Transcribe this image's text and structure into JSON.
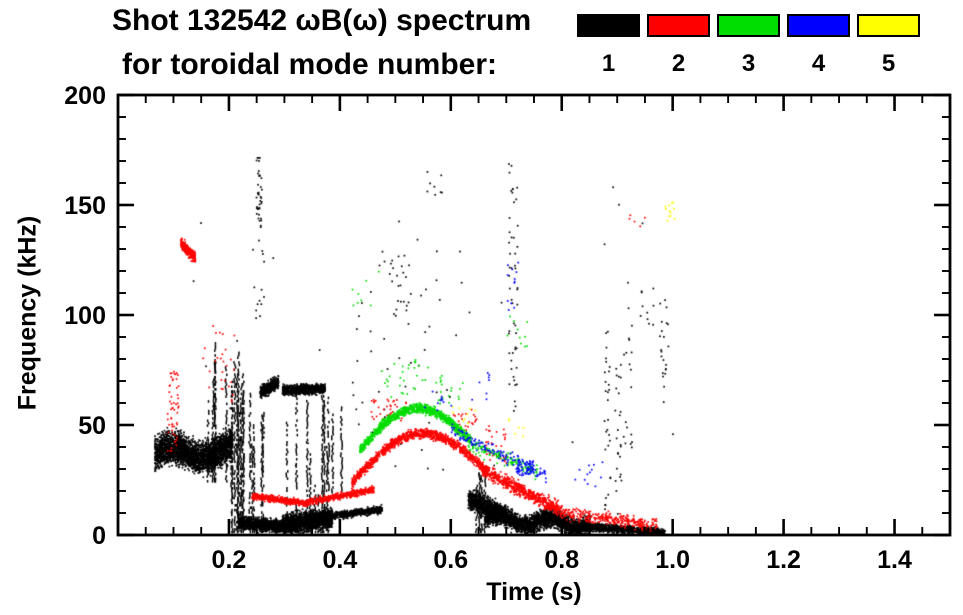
{
  "header": {
    "title_line1": "Shot 132542 ωB(ω) spectrum",
    "title_line2": "for toroidal mode number:"
  },
  "chart_data": {
    "type": "scatter",
    "title": "Shot 132542 ωB(ω) spectrum for toroidal mode number:",
    "xlabel": "Time (s)",
    "ylabel": "Frequency (kHz)",
    "xlim": [
      0.0,
      1.5
    ],
    "ylim": [
      0,
      200
    ],
    "xticks": [
      0.2,
      0.4,
      0.6,
      0.8,
      1.0,
      1.2,
      1.4
    ],
    "xtick_labels": [
      "0.2",
      "0.4",
      "0.6",
      "0.8",
      "1.0",
      "1.2",
      "1.4"
    ],
    "yticks": [
      0,
      50,
      100,
      150,
      200
    ],
    "ytick_labels": [
      "0",
      "50",
      "100",
      "150",
      "200"
    ],
    "x_minor_step": 0.05,
    "y_minor_step": 10,
    "grid": false,
    "legend_position": "top-right",
    "cluster_note": "Scatter content encoded as point clusters: ty=band (linear f trend t0->t1), arc (linear trend + sine bump of height amp), spk (uniform speckle box), vln (vertical striation lines from base up to random top). t in seconds, f in kHz, sp = gaussian f spread, n = point count.",
    "series": [
      {
        "name": "1",
        "color": "#000000",
        "clusters": [
          {
            "ty": "band",
            "t": [
              0.065,
              0.205
            ],
            "f": [
              37,
              39
            ],
            "sp": 7,
            "n": 2600,
            "wa": 3,
            "wf": 1.2
          },
          {
            "ty": "vln",
            "t": [
              0.15,
              0.196
            ],
            "lines": 5,
            "top": [
              60,
              92
            ],
            "base": 25
          },
          {
            "ty": "vln",
            "t": [
              0.196,
              0.222
            ],
            "lines": 8,
            "top": [
              55,
              95
            ],
            "base": 2
          },
          {
            "ty": "vln",
            "t": [
              0.222,
              0.262
            ],
            "lines": 7,
            "top": [
              30,
              75
            ],
            "base": 2
          },
          {
            "ty": "spk",
            "t": [
              0.248,
              0.258
            ],
            "f": [
              138,
              172
            ],
            "n": 38
          },
          {
            "ty": "spk",
            "t": [
              0.24,
              0.262
            ],
            "f": [
              95,
              138
            ],
            "n": 14
          },
          {
            "ty": "band",
            "t": [
              0.215,
              0.3
            ],
            "f": [
              6,
              4
            ],
            "sp": 2.8,
            "n": 1100
          },
          {
            "ty": "band",
            "t": [
              0.295,
              0.385
            ],
            "f": [
              5,
              8
            ],
            "sp": 4.2,
            "n": 1700
          },
          {
            "ty": "vln",
            "t": [
              0.3,
              0.378
            ],
            "lines": 9,
            "top": [
              18,
              66
            ],
            "base": 2
          },
          {
            "ty": "vln",
            "t": [
              0.378,
              0.402
            ],
            "lines": 3,
            "top": [
              40,
              68
            ],
            "base": 20
          },
          {
            "ty": "band",
            "t": [
              0.255,
              0.288
            ],
            "f": [
              65,
              70
            ],
            "sp": 2.8,
            "n": 380
          },
          {
            "ty": "band",
            "t": [
              0.295,
              0.372
            ],
            "f": [
              66,
              67
            ],
            "sp": 2.2,
            "n": 750
          },
          {
            "ty": "band",
            "t": [
              0.385,
              0.475
            ],
            "f": [
              9,
              12
            ],
            "sp": 1.6,
            "n": 520
          },
          {
            "ty": "band",
            "t": [
              0.63,
              0.7
            ],
            "f": [
              17,
              9
            ],
            "sp": 4.5,
            "n": 800
          },
          {
            "ty": "vln",
            "t": [
              0.645,
              0.678
            ],
            "lines": 5,
            "top": [
              22,
              36
            ],
            "base": 2
          },
          {
            "ty": "band",
            "t": [
              0.66,
              0.85
            ],
            "f": [
              8,
              5
            ],
            "sp": 4,
            "n": 2600,
            "wa": 2,
            "wf": 2
          },
          {
            "ty": "band",
            "t": [
              0.85,
              0.985
            ],
            "f": [
              4,
              1.5
            ],
            "sp": 1.8,
            "n": 900
          },
          {
            "ty": "spk",
            "t": [
              0.42,
              0.62
            ],
            "f": [
              15,
              130
            ],
            "n": 45
          },
          {
            "ty": "spk",
            "t": [
              0.49,
              0.525
            ],
            "f": [
              100,
              128
            ],
            "n": 18
          },
          {
            "ty": "spk",
            "t": [
              0.555,
              0.585
            ],
            "f": [
              148,
              168
            ],
            "n": 8
          },
          {
            "ty": "spk",
            "t": [
              0.703,
              0.72
            ],
            "f": [
              55,
              170
            ],
            "n": 50
          },
          {
            "ty": "spk",
            "t": [
              0.875,
              0.887
            ],
            "f": [
              5,
              95
            ],
            "n": 30
          },
          {
            "ty": "spk",
            "t": [
              0.895,
              0.907
            ],
            "f": [
              5,
              78
            ],
            "n": 24
          },
          {
            "ty": "spk",
            "t": [
              0.91,
              0.928
            ],
            "f": [
              40,
              105
            ],
            "n": 18
          },
          {
            "ty": "spk",
            "t": [
              0.935,
              0.965
            ],
            "f": [
              95,
              115
            ],
            "n": 10
          },
          {
            "ty": "spk",
            "t": [
              0.975,
              0.992
            ],
            "f": [
              60,
              108
            ],
            "n": 22
          },
          {
            "ty": "spk",
            "t": [
              0.1,
              1.0
            ],
            "f": [
              20,
              160
            ],
            "n": 35
          }
        ]
      },
      {
        "name": "2",
        "color": "#ff0000",
        "clusters": [
          {
            "ty": "band",
            "t": [
              0.112,
              0.138
            ],
            "f": [
              133,
              126
            ],
            "sp": 2.6,
            "n": 260
          },
          {
            "ty": "spk",
            "t": [
              0.088,
              0.108
            ],
            "f": [
              38,
              75
            ],
            "n": 55
          },
          {
            "ty": "spk",
            "t": [
              0.15,
              0.21
            ],
            "f": [
              58,
              96
            ],
            "n": 28
          },
          {
            "ty": "band",
            "t": [
              0.24,
              0.335
            ],
            "f": [
              18,
              15
            ],
            "sp": 1.4,
            "n": 430
          },
          {
            "ty": "band",
            "t": [
              0.335,
              0.46
            ],
            "f": [
              15,
              21
            ],
            "sp": 1.4,
            "n": 520
          },
          {
            "ty": "arc",
            "t": [
              0.42,
              0.665
            ],
            "f": [
              24,
              29
            ],
            "amp": 20,
            "sp": 2.2,
            "n": 1150
          },
          {
            "ty": "band",
            "t": [
              0.655,
              0.8
            ],
            "f": [
              30,
              11
            ],
            "sp": 3,
            "n": 620
          },
          {
            "ty": "band",
            "t": [
              0.8,
              0.97
            ],
            "f": [
              10,
              5
            ],
            "sp": 2.6,
            "n": 300
          },
          {
            "ty": "spk",
            "t": [
              0.455,
              0.52
            ],
            "f": [
              52,
              62
            ],
            "n": 40
          },
          {
            "ty": "spk",
            "t": [
              0.6,
              0.645
            ],
            "f": [
              46,
              58
            ],
            "n": 26
          },
          {
            "ty": "spk",
            "t": [
              0.66,
              0.7
            ],
            "f": [
              33,
              50
            ],
            "n": 30
          },
          {
            "ty": "spk",
            "t": [
              0.92,
              0.96
            ],
            "f": [
              140,
              155
            ],
            "n": 5
          }
        ]
      },
      {
        "name": "3",
        "color": "#00dd00",
        "clusters": [
          {
            "ty": "arc",
            "t": [
              0.435,
              0.635
            ],
            "f": [
              39,
              43
            ],
            "amp": 17,
            "sp": 2.2,
            "n": 950
          },
          {
            "ty": "spk",
            "t": [
              0.465,
              0.56
            ],
            "f": [
              63,
              80
            ],
            "n": 30
          },
          {
            "ty": "band",
            "t": [
              0.63,
              0.755
            ],
            "f": [
              42,
              29
            ],
            "sp": 3,
            "n": 150
          },
          {
            "ty": "spk",
            "t": [
              0.7,
              0.745
            ],
            "f": [
              85,
              100
            ],
            "n": 10
          },
          {
            "ty": "spk",
            "t": [
              0.57,
              0.625
            ],
            "f": [
              60,
              74
            ],
            "n": 20
          },
          {
            "ty": "spk",
            "t": [
              0.42,
              0.47
            ],
            "f": [
              100,
              122
            ],
            "n": 8
          }
        ]
      },
      {
        "name": "4",
        "color": "#0000ff",
        "clusters": [
          {
            "ty": "band",
            "t": [
              0.6,
              0.77
            ],
            "f": [
              48,
              27
            ],
            "sp": 3,
            "n": 130
          },
          {
            "ty": "spk",
            "t": [
              0.715,
              0.748
            ],
            "f": [
              27,
              34
            ],
            "n": 55
          },
          {
            "ty": "spk",
            "t": [
              0.7,
              0.722
            ],
            "f": [
              100,
              126
            ],
            "n": 12
          },
          {
            "ty": "spk",
            "t": [
              0.55,
              0.6
            ],
            "f": [
              55,
              66
            ],
            "n": 10
          },
          {
            "ty": "spk",
            "t": [
              0.82,
              0.875
            ],
            "f": [
              22,
              35
            ],
            "n": 12
          },
          {
            "ty": "spk",
            "t": [
              0.63,
              0.67
            ],
            "f": [
              60,
              76
            ],
            "n": 8
          }
        ]
      },
      {
        "name": "5",
        "color": "#ffff00",
        "clusters": [
          {
            "ty": "spk",
            "t": [
              0.985,
              1.002
            ],
            "f": [
              143,
              152
            ],
            "n": 12
          },
          {
            "ty": "spk",
            "t": [
              0.6,
              0.645
            ],
            "f": [
              50,
              60
            ],
            "n": 9
          },
          {
            "ty": "spk",
            "t": [
              0.7,
              0.735
            ],
            "f": [
              45,
              56
            ],
            "n": 6
          }
        ]
      }
    ]
  }
}
